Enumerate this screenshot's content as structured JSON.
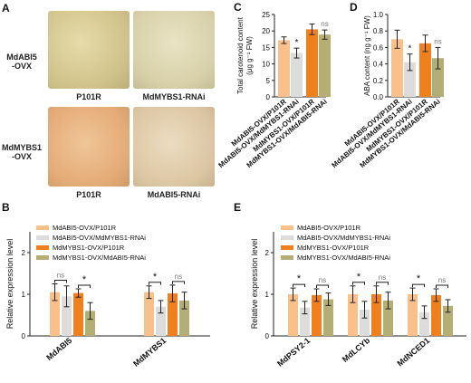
{
  "colors": {
    "ctrl_abi5": "#f9c08a",
    "rnai_abi5": "#dcdcdc",
    "ctrl_mybs1": "#f0801e",
    "rnai_mybs1": "#b4ae74"
  },
  "panel_a": {
    "letter": "A",
    "row1_label": "MdABI5\n-OVX",
    "row2_label": "MdMYBS1\n-OVX",
    "captions": [
      "P101R",
      "MdMYBS1-RNAi",
      "P101R",
      "MdABI5-RNAi"
    ]
  },
  "chart_data": [
    {
      "panel": "C",
      "type": "bar",
      "ylabel": "Total carotenoid content",
      "yunit": "(μg g⁻¹ FW)",
      "ylim": [
        0,
        25
      ],
      "yticks": [
        0,
        5,
        10,
        15,
        20,
        25
      ],
      "categories": [
        "MdABI5-OVX/P101R",
        "MdABI5-OVX/MdMYBS1-RNAi",
        "MdMYBS1-OVX/P101R",
        "MdMYBS1-OVX/MdABI5-RNAi"
      ],
      "values": [
        17.2,
        13.3,
        20.5,
        18.9
      ],
      "errors": [
        1.0,
        1.5,
        1.6,
        1.4
      ],
      "annotations": [
        "*",
        "ns"
      ]
    },
    {
      "panel": "D",
      "type": "bar",
      "ylabel": "ABA content (ng g⁻¹ FW)",
      "ylim": [
        0,
        1.0
      ],
      "yticks": [
        "0.0",
        "0.2",
        "0.4",
        "0.6",
        "0.8",
        "1.0"
      ],
      "categories": [
        "MdABI5-OVX/P101R",
        "MdABI5-OVX/MdMYBS1-RNAi",
        "MdMYBS1-OVX/P101R",
        "MdMYBS1-OVX/MdABI5-RNAi"
      ],
      "values": [
        0.7,
        0.42,
        0.65,
        0.47
      ],
      "errors": [
        0.11,
        0.1,
        0.1,
        0.13
      ],
      "annotations": [
        "*",
        "ns"
      ]
    },
    {
      "panel": "B",
      "type": "bar",
      "ylabel": "Relative expression level",
      "ylim": [
        0,
        2.5
      ],
      "yticks": [
        "0",
        "1",
        "2"
      ],
      "categories": [
        "MdABI5",
        "MdMYBS1"
      ],
      "legend": [
        "MdABI5-OVX/P101R",
        "MdABI5-OVX/MdMYBS1-RNAi",
        "MdMYBS1-OVX/P101R",
        "MdMYBS1-OVX/MdABI5-RNAi"
      ],
      "series": [
        {
          "name": "MdABI5-OVX/P101R",
          "values": [
            1.05,
            1.05
          ],
          "errors": [
            0.2,
            0.15
          ]
        },
        {
          "name": "MdABI5-OVX/MdMYBS1-RNAi",
          "values": [
            0.95,
            0.7
          ],
          "errors": [
            0.25,
            0.15
          ]
        },
        {
          "name": "MdMYBS1-OVX/P101R",
          "values": [
            1.03,
            1.02
          ],
          "errors": [
            0.1,
            0.2
          ]
        },
        {
          "name": "MdMYBS1-OVX/MdABI5-RNAi",
          "values": [
            0.6,
            0.85
          ],
          "errors": [
            0.2,
            0.2
          ]
        }
      ],
      "annotations": [
        "ns",
        "*",
        "*",
        "ns"
      ]
    },
    {
      "panel": "E",
      "type": "bar",
      "ylabel": "Relative expression level",
      "ylim": [
        0,
        2.5
      ],
      "yticks": [
        "0",
        "1",
        "2"
      ],
      "categories": [
        "MdPSY2-1",
        "MdLCYb",
        "MdNCED1"
      ],
      "legend": [
        "MdABI5-OVX/P101R",
        "MdABI5-OVX/MdMYBS1-RNAi",
        "MdMYBS1-OVX/P101R",
        "MdMYBS1-OVX/MdABI5-RNAi"
      ],
      "series": [
        {
          "name": "MdABI5-OVX/P101R",
          "values": [
            1.0,
            1.0,
            1.0
          ],
          "errors": [
            0.15,
            0.2,
            0.15
          ]
        },
        {
          "name": "MdABI5-OVX/MdMYBS1-RNAi",
          "values": [
            0.68,
            0.63,
            0.57
          ],
          "errors": [
            0.15,
            0.2,
            0.15
          ]
        },
        {
          "name": "MdMYBS1-OVX/P101R",
          "values": [
            0.98,
            1.0,
            0.98
          ],
          "errors": [
            0.15,
            0.2,
            0.15
          ]
        },
        {
          "name": "MdMYBS1-OVX/MdABI5-RNAi",
          "values": [
            0.88,
            0.85,
            0.72
          ],
          "errors": [
            0.15,
            0.2,
            0.15
          ]
        }
      ],
      "annotations": [
        "*",
        "ns",
        "*",
        "ns",
        "*",
        "ns"
      ]
    }
  ]
}
